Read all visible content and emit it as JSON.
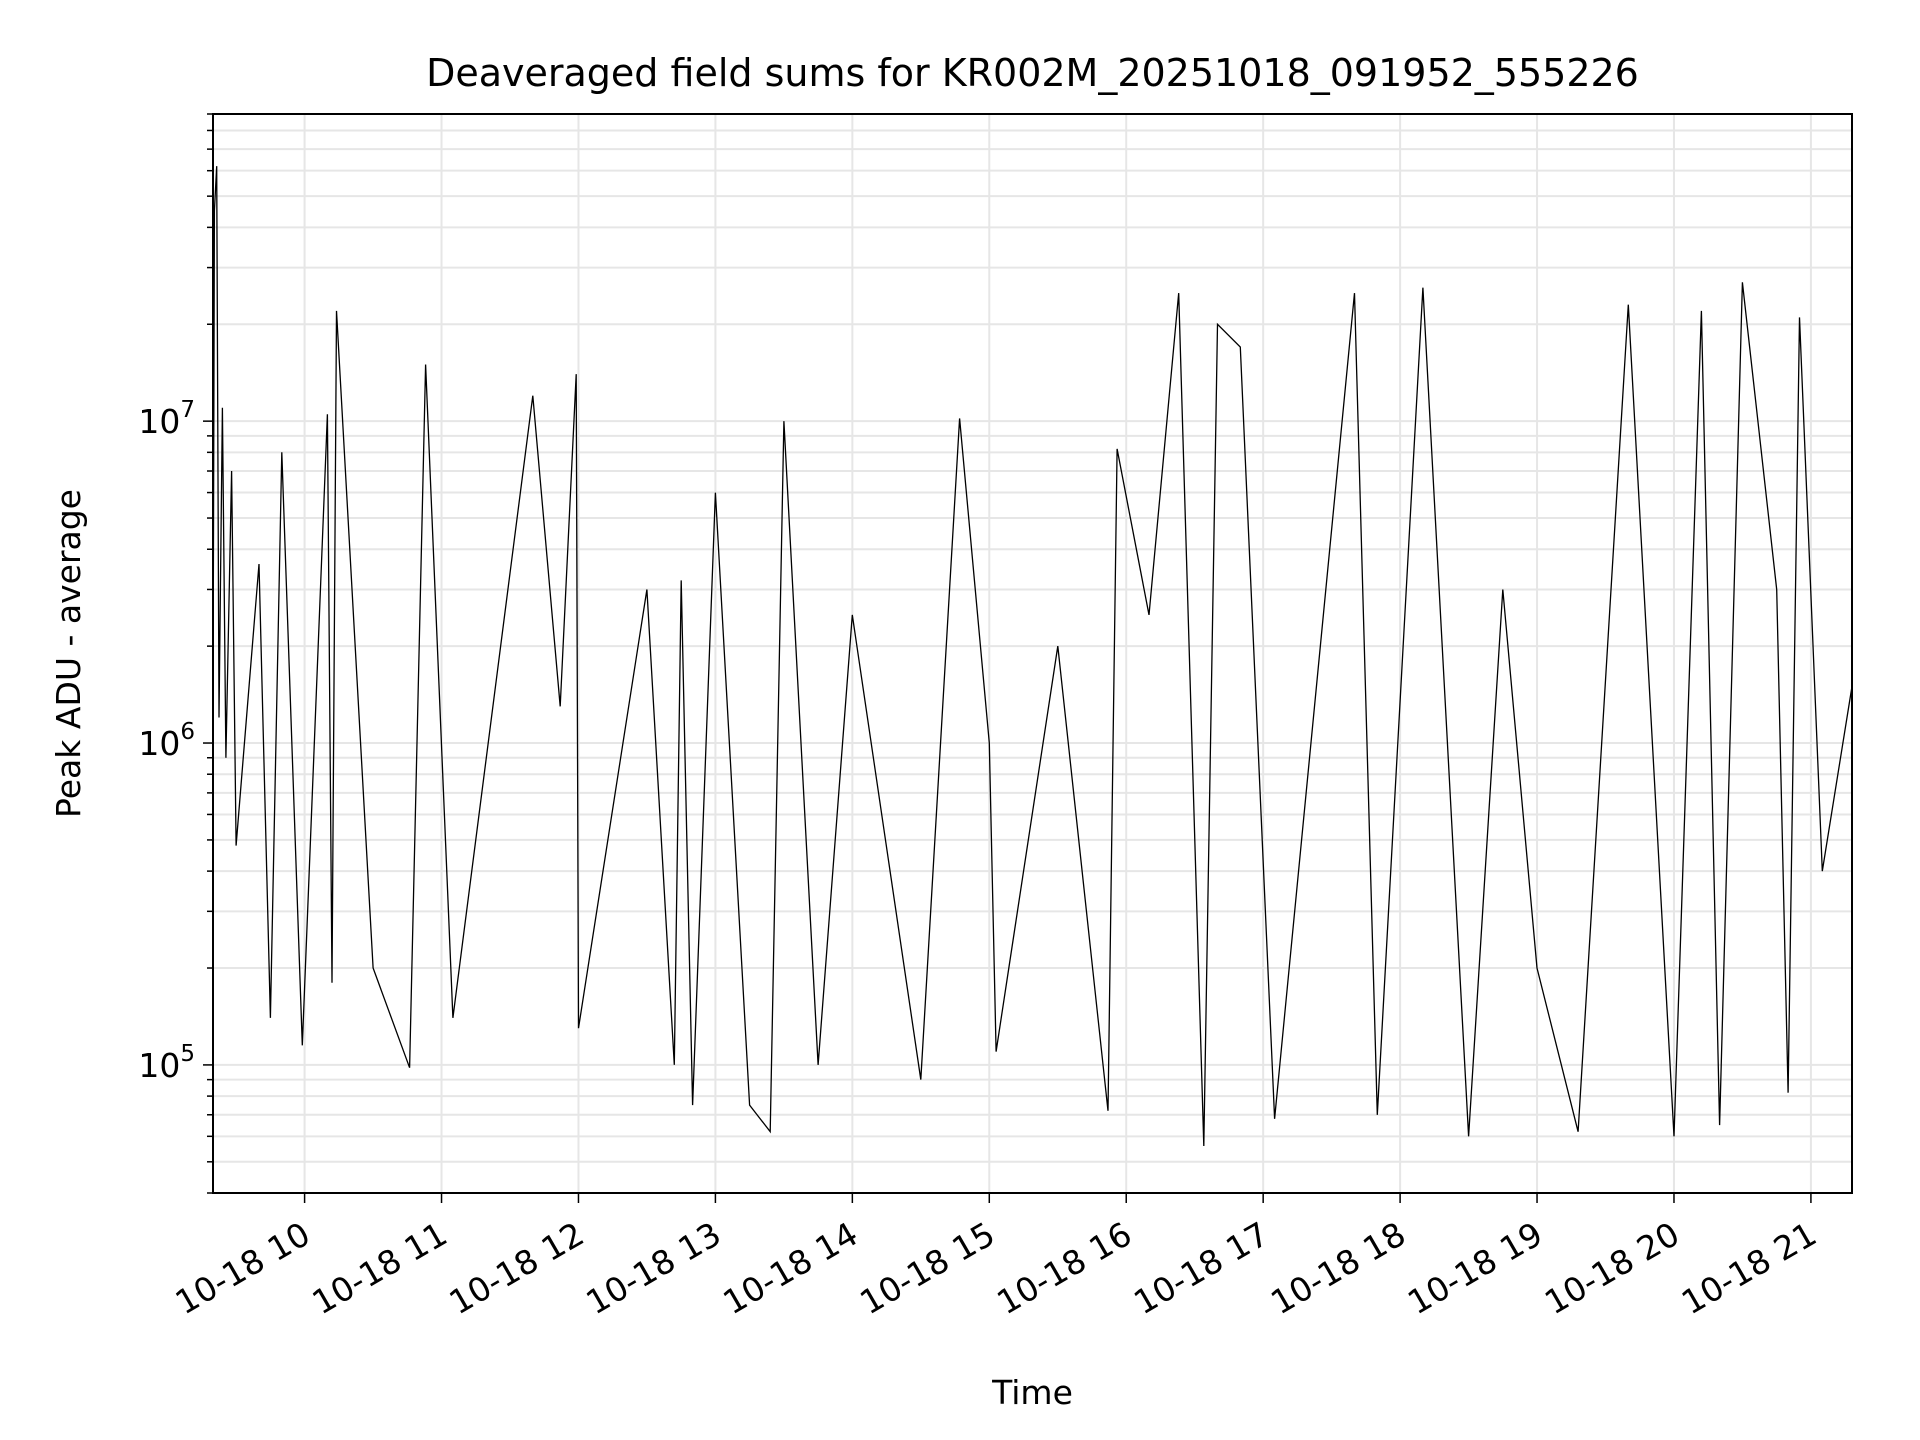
{
  "chart_data": {
    "type": "line",
    "title": "Deaveraged field sums for KR002M_20251018_091952_555226",
    "xlabel": "Time",
    "ylabel": "Peak ADU - average",
    "yscale": "log",
    "ylim": [
      40000,
      90000000
    ],
    "xlim": [
      "2025-10-18 09:19:52",
      "2025-10-18 21:18:00"
    ],
    "x_ticks": [
      {
        "time": "2025-10-18 10:00",
        "label": "10-18 10"
      },
      {
        "time": "2025-10-18 11:00",
        "label": "10-18 11"
      },
      {
        "time": "2025-10-18 12:00",
        "label": "10-18 12"
      },
      {
        "time": "2025-10-18 13:00",
        "label": "10-18 13"
      },
      {
        "time": "2025-10-18 14:00",
        "label": "10-18 14"
      },
      {
        "time": "2025-10-18 15:00",
        "label": "10-18 15"
      },
      {
        "time": "2025-10-18 16:00",
        "label": "10-18 16"
      },
      {
        "time": "2025-10-18 17:00",
        "label": "10-18 17"
      },
      {
        "time": "2025-10-18 18:00",
        "label": "10-18 18"
      },
      {
        "time": "2025-10-18 19:00",
        "label": "10-18 19"
      },
      {
        "time": "2025-10-18 20:00",
        "label": "10-18 20"
      },
      {
        "time": "2025-10-18 21:00",
        "label": "10-18 21"
      }
    ],
    "y_ticks": [
      {
        "value": 100000,
        "base": "10",
        "exp": "5"
      },
      {
        "value": 1000000,
        "base": "10",
        "exp": "6"
      },
      {
        "value": 10000000,
        "base": "10",
        "exp": "7"
      }
    ],
    "grid": true,
    "line_color": "#000000",
    "grid_color": "#e6e6e6",
    "series": [
      {
        "points": [
          [
            "2025-10-18 09:19:52",
            1300000
          ],
          [
            "2025-10-18 09:20:30",
            45000000
          ],
          [
            "2025-10-18 09:21:30",
            62000000
          ],
          [
            "2025-10-18 09:22:30",
            1200000
          ],
          [
            "2025-10-18 09:24:00",
            11000000
          ],
          [
            "2025-10-18 09:25:30",
            900000
          ],
          [
            "2025-10-18 09:28:00",
            7000000
          ],
          [
            "2025-10-18 09:30:00",
            480000
          ],
          [
            "2025-10-18 09:40:00",
            3600000
          ],
          [
            "2025-10-18 09:45:00",
            140000
          ],
          [
            "2025-10-18 09:50:00",
            8000000
          ],
          [
            "2025-10-18 09:59:00",
            115000
          ],
          [
            "2025-10-18 10:10:00",
            10500000
          ],
          [
            "2025-10-18 10:12:00",
            180000
          ],
          [
            "2025-10-18 10:14:00",
            22000000
          ],
          [
            "2025-10-18 10:30:00",
            200000
          ],
          [
            "2025-10-18 10:46:00",
            98000
          ],
          [
            "2025-10-18 10:53:00",
            15000000
          ],
          [
            "2025-10-18 11:05:00",
            140000
          ],
          [
            "2025-10-18 11:40:00",
            12000000
          ],
          [
            "2025-10-18 11:52:00",
            1300000
          ],
          [
            "2025-10-18 11:59:00",
            14000000
          ],
          [
            "2025-10-18 12:00:00",
            130000
          ],
          [
            "2025-10-18 12:30:00",
            3000000
          ],
          [
            "2025-10-18 12:42:00",
            100000
          ],
          [
            "2025-10-18 12:45:00",
            3200000
          ],
          [
            "2025-10-18 12:50:00",
            75000
          ],
          [
            "2025-10-18 13:00:00",
            6000000
          ],
          [
            "2025-10-18 13:15:00",
            75000
          ],
          [
            "2025-10-18 13:24:00",
            62000
          ],
          [
            "2025-10-18 13:30:00",
            10000000
          ],
          [
            "2025-10-18 13:45:00",
            100000
          ],
          [
            "2025-10-18 14:00:00",
            2500000
          ],
          [
            "2025-10-18 14:30:00",
            90000
          ],
          [
            "2025-10-18 14:47:00",
            10200000
          ],
          [
            "2025-10-18 15:00:00",
            1000000
          ],
          [
            "2025-10-18 15:03:00",
            110000
          ],
          [
            "2025-10-18 15:30:00",
            2000000
          ],
          [
            "2025-10-18 15:52:00",
            72000
          ],
          [
            "2025-10-18 15:56:00",
            8200000
          ],
          [
            "2025-10-18 16:10:00",
            2500000
          ],
          [
            "2025-10-18 16:23:00",
            25000000
          ],
          [
            "2025-10-18 16:34:00",
            56000
          ],
          [
            "2025-10-18 16:40:00",
            20000000
          ],
          [
            "2025-10-18 16:50:00",
            17000000
          ],
          [
            "2025-10-18 17:05:00",
            68000
          ],
          [
            "2025-10-18 17:40:00",
            25000000
          ],
          [
            "2025-10-18 17:50:00",
            70000
          ],
          [
            "2025-10-18 18:10:00",
            26000000
          ],
          [
            "2025-10-18 18:30:00",
            60000
          ],
          [
            "2025-10-18 18:45:00",
            3000000
          ],
          [
            "2025-10-18 19:00:00",
            200000
          ],
          [
            "2025-10-18 19:18:00",
            62000
          ],
          [
            "2025-10-18 19:40:00",
            23000000
          ],
          [
            "2025-10-18 20:00:00",
            60000
          ],
          [
            "2025-10-18 20:12:00",
            22000000
          ],
          [
            "2025-10-18 20:20:00",
            65000
          ],
          [
            "2025-10-18 20:30:00",
            27000000
          ],
          [
            "2025-10-18 20:45:00",
            3000000
          ],
          [
            "2025-10-18 20:50:00",
            82000
          ],
          [
            "2025-10-18 20:55:00",
            21000000
          ],
          [
            "2025-10-18 21:05:00",
            400000
          ],
          [
            "2025-10-18 21:18:00",
            1500000
          ]
        ]
      }
    ]
  }
}
